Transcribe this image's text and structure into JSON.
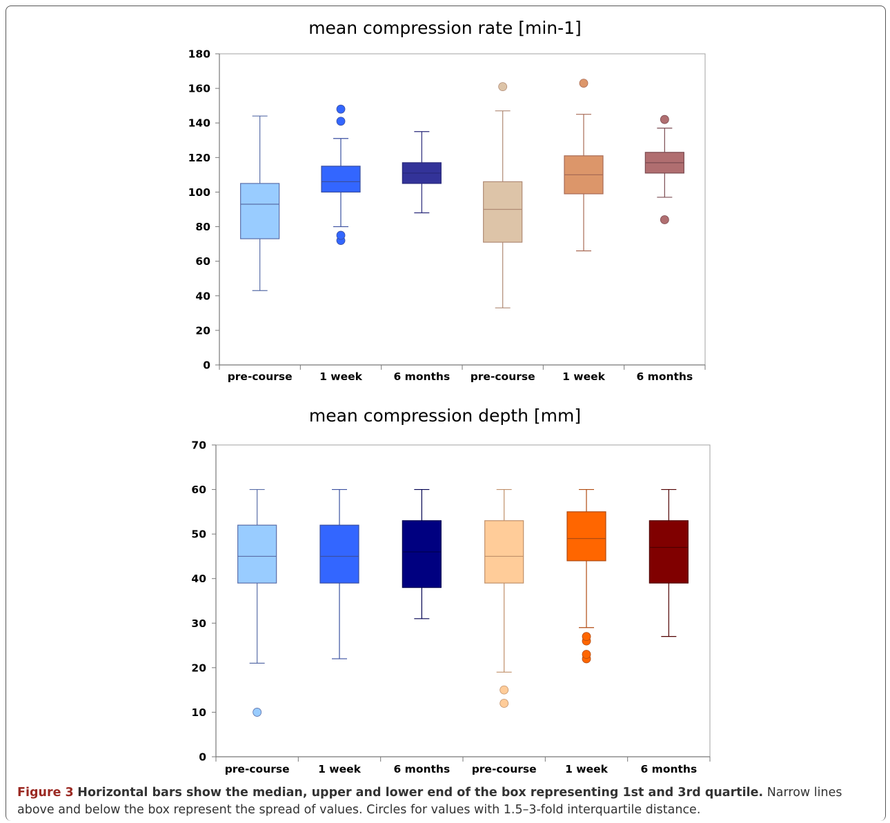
{
  "chart_data": [
    {
      "type": "boxplot",
      "title": "mean compression rate [min-1]",
      "ylim": [
        0,
        180
      ],
      "yticks": [
        "0",
        "20",
        "40",
        "60",
        "80",
        "100",
        "120",
        "140",
        "160",
        "180"
      ],
      "categories": [
        "pre-course",
        "1 week",
        "6 months",
        "pre-course",
        "1 week",
        "6 months"
      ],
      "boxes": [
        {
          "category": "pre-course",
          "whisker_low": 43,
          "q1": 73,
          "median": 93,
          "q3": 105,
          "whisker_high": 144,
          "outliers": [],
          "color": "#99CCFF",
          "edge": "#5a6ea8"
        },
        {
          "category": "1 week",
          "whisker_low": 80,
          "q1": 100,
          "median": 106,
          "q3": 115,
          "whisker_high": 131,
          "outliers": [
            72,
            75,
            141,
            148
          ],
          "color": "#3366FF",
          "edge": "#3a4fa0"
        },
        {
          "category": "6 months",
          "whisker_low": 88,
          "q1": 105,
          "median": 111,
          "q3": 117,
          "whisker_high": 135,
          "outliers": [],
          "color": "#333399",
          "edge": "#28287a"
        },
        {
          "category": "pre-course",
          "whisker_low": 33,
          "q1": 71,
          "median": 90,
          "q3": 106,
          "whisker_high": 147,
          "outliers": [
            161
          ],
          "color": "#DDC4A8",
          "edge": "#b08a74"
        },
        {
          "category": "1 week",
          "whisker_low": 66,
          "q1": 99,
          "median": 110,
          "q3": 121,
          "whisker_high": 145,
          "outliers": [
            163
          ],
          "color": "#DC966A",
          "edge": "#a86a55"
        },
        {
          "category": "6 months",
          "whisker_low": 97,
          "q1": 111,
          "median": 117,
          "q3": 123,
          "whisker_high": 137,
          "outliers": [
            84,
            142
          ],
          "color": "#B06E70",
          "edge": "#7a4a50"
        }
      ]
    },
    {
      "type": "boxplot",
      "title": "mean compression depth [mm]",
      "ylim": [
        0,
        70
      ],
      "yticks": [
        "0",
        "10",
        "20",
        "30",
        "40",
        "50",
        "60",
        "70"
      ],
      "categories": [
        "pre-course",
        "1 week",
        "6 months",
        "pre-course",
        "1 week",
        "6 months"
      ],
      "boxes": [
        {
          "category": "pre-course",
          "whisker_low": 21,
          "q1": 39,
          "median": 45,
          "q3": 52,
          "whisker_high": 60,
          "outliers": [
            10
          ],
          "color": "#99CCFF",
          "edge": "#5a6ea8"
        },
        {
          "category": "1 week",
          "whisker_low": 22,
          "q1": 39,
          "median": 45,
          "q3": 52,
          "whisker_high": 60,
          "outliers": [],
          "color": "#3366FF",
          "edge": "#3a4fa0"
        },
        {
          "category": "6 months",
          "whisker_low": 31,
          "q1": 38,
          "median": 46,
          "q3": 53,
          "whisker_high": 60,
          "outliers": [],
          "color": "#000080",
          "edge": "#000050"
        },
        {
          "category": "pre-course",
          "whisker_low": 19,
          "q1": 39,
          "median": 45,
          "q3": 53,
          "whisker_high": 60,
          "outliers": [
            12,
            15
          ],
          "color": "#FFCC99",
          "edge": "#c0906a"
        },
        {
          "category": "1 week",
          "whisker_low": 29,
          "q1": 44,
          "median": 49,
          "q3": 55,
          "whisker_high": 60,
          "outliers": [
            22,
            23,
            26,
            27
          ],
          "color": "#FF6600",
          "edge": "#b04a10"
        },
        {
          "category": "6 months",
          "whisker_low": 27,
          "q1": 39,
          "median": 47,
          "q3": 53,
          "whisker_high": 60,
          "outliers": [],
          "color": "#800000",
          "edge": "#500000"
        }
      ]
    }
  ],
  "caption": {
    "label": "Figure 3",
    "bold_text": "Horizontal bars show the median, upper and lower end of the box representing 1st and 3rd quartile.",
    "text": "Narrow lines above and below the box represent the spread of values. Circles for values with 1.5–3-fold interquartile distance."
  }
}
